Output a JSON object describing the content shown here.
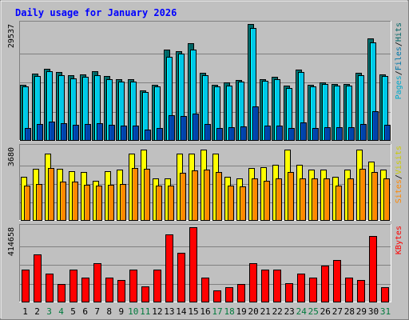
{
  "chart_data": {
    "type": "bar",
    "title": "Daily usage for January 2026",
    "categories": [
      "1",
      "2",
      "3",
      "4",
      "5",
      "6",
      "7",
      "8",
      "9",
      "10",
      "11",
      "12",
      "13",
      "14",
      "15",
      "16",
      "17",
      "18",
      "19",
      "20",
      "21",
      "22",
      "23",
      "24",
      "25",
      "26",
      "27",
      "28",
      "29",
      "30",
      "31"
    ],
    "weekend_days": [
      "3",
      "4",
      "10",
      "11",
      "17",
      "18",
      "24",
      "25",
      "31"
    ],
    "panels": [
      {
        "id": "top",
        "ymax_label": "29537",
        "ymax": 29537,
        "grid": true,
        "series": [
          {
            "name": "Hits",
            "color": "#006666",
            "values": [
              14200,
              17000,
              18300,
              17400,
              16500,
              16800,
              17500,
              16400,
              15600,
              15600,
              12800,
              14100,
              23000,
              22600,
              24600,
              17200,
              14200,
              14700,
              15300,
              29537,
              15600,
              16100,
              14000,
              18100,
              14200,
              14800,
              14400,
              14400,
              17200,
              25800,
              16700
            ]
          },
          {
            "name": "Files",
            "color": "#00c8e8",
            "values": [
              13700,
              16300,
              17600,
              16600,
              15800,
              16200,
              16500,
              15600,
              14900,
              14900,
              12400,
              13800,
              21200,
              22000,
              23000,
              16500,
              13800,
              14000,
              14900,
              28500,
              15100,
              15500,
              13300,
              17400,
              13800,
              14400,
              13900,
              13900,
              16500,
              24800,
              16300
            ]
          },
          {
            "name": "Pages",
            "color": "#0044aa",
            "values": [
              3300,
              4300,
              4900,
              4500,
              4100,
              4300,
              4500,
              4100,
              3800,
              3800,
              2900,
              3300,
              6500,
              6300,
              6900,
              4300,
              3300,
              3500,
              3700,
              8700,
              3800,
              3900,
              3200,
              4700,
              3300,
              3500,
              3400,
              3400,
              4300,
              7400,
              4100
            ]
          }
        ],
        "legend": [
          {
            "text": "Pages",
            "color": "#00aacc"
          },
          {
            "text": "/",
            "color": "#000000"
          },
          {
            "text": "Files",
            "color": "#0077aa"
          },
          {
            "text": "/",
            "color": "#000000"
          },
          {
            "text": "Hits",
            "color": "#006666"
          }
        ]
      },
      {
        "id": "middle",
        "ymax_label": "3680",
        "ymax": 3680,
        "grid": true,
        "series": [
          {
            "name": "Visits",
            "color": "#ffff00",
            "values": [
              2200,
              2600,
              3340,
              2600,
              2470,
              2450,
              2000,
              2470,
              2570,
              3340,
              3560,
              2100,
              2100,
              3340,
              3340,
              3560,
              3340,
              2200,
              2100,
              2650,
              2680,
              2800,
              3560,
              2800,
              2550,
              2560,
              2200,
              2550,
              3560,
              2950,
              2550
            ]
          },
          {
            "name": "Sites",
            "color": "#ff8800",
            "values": [
              1750,
              1850,
              2650,
              1950,
              1940,
              1800,
              1750,
              1800,
              1850,
              2650,
              2600,
              1750,
              1750,
              2400,
              2500,
              2550,
              2450,
              1750,
              1700,
              2100,
              2000,
              2100,
              2450,
              2100,
              2100,
              2100,
              1750,
              2100,
              2600,
              2450,
              2100
            ]
          }
        ],
        "legend": [
          {
            "text": "Sites",
            "color": "#ff8800"
          },
          {
            "text": "/",
            "color": "#000000"
          },
          {
            "text": "Visits",
            "color": "#cccc00"
          }
        ]
      },
      {
        "id": "bottom",
        "ymax_label": "414658",
        "ymax": 414658,
        "grid": true,
        "series": [
          {
            "name": "KBytes",
            "color": "#ff0000",
            "values": [
              182000,
              266000,
              160000,
              103000,
              179000,
              138000,
              215000,
              137000,
              125000,
              182000,
              90000,
              179000,
              375000,
              274000,
              414658,
              137000,
              64000,
              84000,
              100000,
              215000,
              179000,
              179000,
              106000,
              160000,
              137000,
              203000,
              233000,
              137000,
              125000,
              365000,
              84000
            ]
          }
        ],
        "legend": [
          {
            "text": "KBytes",
            "color": "#ff0000"
          }
        ]
      }
    ]
  },
  "colors": {
    "frame": "#c0c0c0",
    "plot_bg": "#c0c0c0",
    "grid": "#808080",
    "title": "#0000ff",
    "weekday_label": "#000000",
    "weekend_label": "#007a3d"
  }
}
